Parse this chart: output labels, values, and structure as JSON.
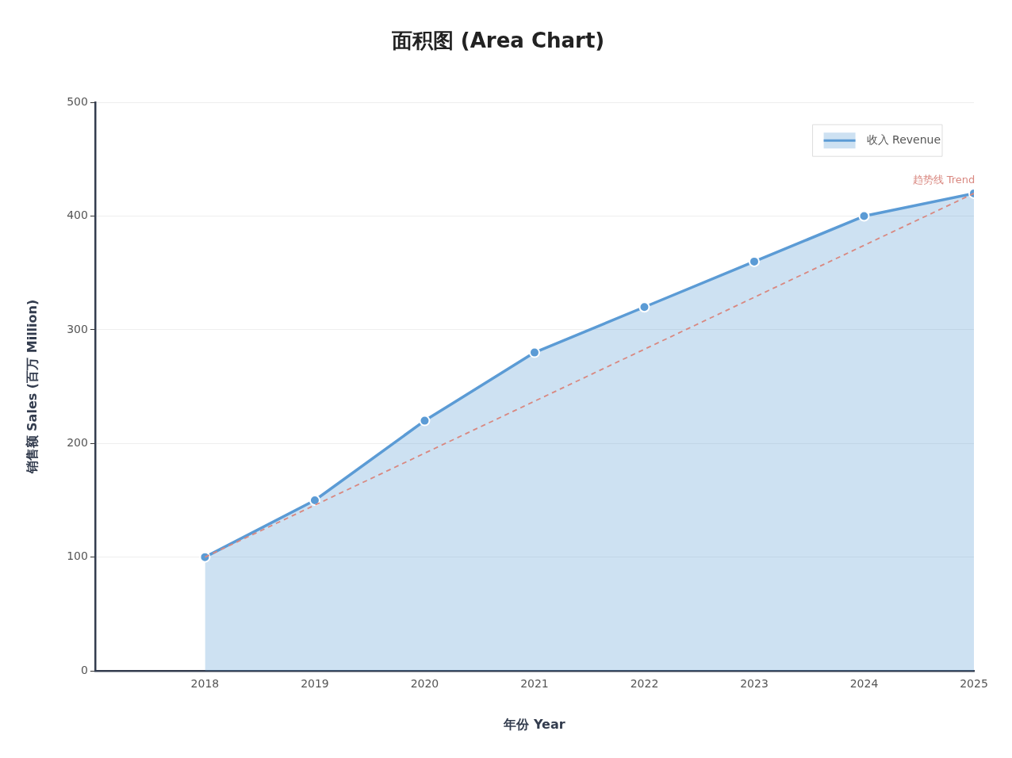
{
  "chart_data": {
    "type": "area",
    "title": "面积图 (Area Chart)",
    "xlabel": "年份 Year",
    "ylabel": "销售额 Sales (百万 Million)",
    "x": [
      2018,
      2019,
      2020,
      2021,
      2022,
      2023,
      2024,
      2025
    ],
    "series": [
      {
        "name": "收入 Revenue",
        "color": "#5b9bd5",
        "marker": "circle",
        "values": [
          100,
          150,
          220,
          280,
          320,
          360,
          400,
          420
        ]
      },
      {
        "name": "趋势线 Trend",
        "type": "line",
        "color": "#d98880",
        "line_style": "dashed",
        "marker": "none",
        "x": [
          2018,
          2025
        ],
        "values": [
          100,
          420
        ]
      }
    ],
    "xlim": [
      2017,
      2025
    ],
    "xticks": [
      2018,
      2019,
      2020,
      2021,
      2022,
      2023,
      2024,
      2025
    ],
    "ylim": [
      0,
      500
    ],
    "yticks": [
      0,
      100,
      200,
      300,
      400,
      500
    ],
    "grid": "y",
    "legend": "top right"
  }
}
